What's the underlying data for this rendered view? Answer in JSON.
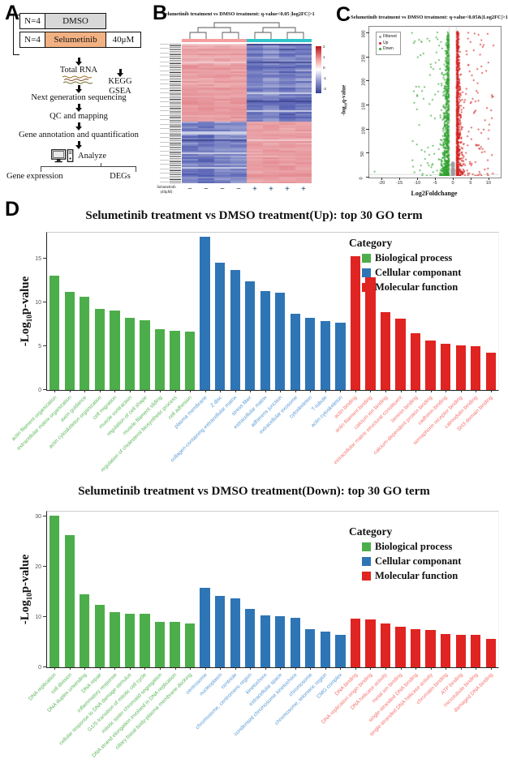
{
  "panels": {
    "a": {
      "label": "A",
      "groups": [
        {
          "n": "N=4",
          "name": "DMSO",
          "dose": ""
        },
        {
          "n": "N=4",
          "name": "Selumetinib",
          "dose": "40μM"
        }
      ],
      "steps": [
        "Total RNA",
        "Next generation sequencing",
        "QC and mapping",
        "Gene annotation and quantification"
      ],
      "analyze_label": "Analyze",
      "outputs": {
        "left": "Gene expression",
        "right": "DEGs"
      },
      "downstream": [
        "KEGG",
        "GSEA"
      ]
    },
    "b": {
      "label": "B",
      "title": "Selumetinib treatment vs DMSO treatment: q-value<0.05 |log2FC|>1",
      "row_label_lines": [
        "Selumetinib",
        "(40μM)"
      ],
      "col_signs": [
        "−",
        "−",
        "−",
        "−",
        "+",
        "+",
        "+",
        "+"
      ],
      "colorbar_ticks": [
        "2",
        "1",
        "0",
        "-1",
        "-2"
      ],
      "annotation_colors": [
        "#f49e9e",
        "#2fc5c9"
      ]
    },
    "c": {
      "label": "C"
    },
    "d": {
      "label": "D"
    }
  },
  "chart_data": [
    {
      "id": "go_up",
      "type": "bar",
      "title": "Selumetinib treatment vs DMSO treatment(Up): top 30  GO term",
      "ylabel_parts": {
        "prefix": "-Log",
        "sub": "10",
        "suffix": "p-value"
      },
      "yticks": [
        0,
        5,
        10,
        15
      ],
      "ylim": [
        0,
        18
      ],
      "legend": {
        "title": "Category",
        "entries": [
          {
            "label": "Biological process",
            "color": "#4cae4a"
          },
          {
            "label": "Cellular componant",
            "color": "#2e75b6"
          },
          {
            "label": "Molecular function",
            "color": "#e02421"
          }
        ]
      },
      "groups": [
        {
          "name": "Biological process",
          "bar_color": "#4cae4a",
          "label_color": "#5db75d",
          "terms": [
            "actin filament organization",
            "extracellular matrix organization",
            "axon guidance",
            "actin cytoskeleton organization",
            "cell migration",
            "muscle contraction",
            "regulation of cell shape",
            "muscle filament sliding",
            "regulation of cholesterol biosynthetic process",
            "cell adhesion"
          ],
          "values": [
            13.1,
            11.2,
            10.7,
            9.3,
            9.1,
            8.3,
            8.0,
            7.0,
            6.8,
            6.7
          ]
        },
        {
          "name": "Cellular componant",
          "bar_color": "#2e75b6",
          "label_color": "#5b9bd5",
          "terms": [
            "plasma membrane",
            "Z disc",
            "collagen-containing extracellular matrix",
            "stress fiber",
            "extracellular matrix",
            "adherens junction",
            "extracellular exosome",
            "cytoskeleton",
            "T-tubule",
            "actin cytoskeleton"
          ],
          "values": [
            17.5,
            14.6,
            13.7,
            12.4,
            11.3,
            11.1,
            8.7,
            8.3,
            7.9,
            7.7
          ]
        },
        {
          "name": "Molecular function",
          "bar_color": "#e02421",
          "label_color": "#f4756f",
          "terms": [
            "actin binding",
            "actin filament binding",
            "calcium ion binding",
            "extracellular matrix structural constituent",
            "laminin binding",
            "calcium-dependent protein binding",
            "cadherin binding",
            "semaphorin receptor binding",
            "calmodulin binding",
            "SH3 domain binding"
          ],
          "values": [
            15.3,
            12.9,
            8.9,
            8.2,
            6.5,
            5.7,
            5.3,
            5.1,
            5.0,
            4.3
          ]
        }
      ]
    },
    {
      "id": "go_down",
      "type": "bar",
      "title": "Selumetinib treatment vs DMSO treatment(Down): top 30  GO term",
      "ylabel_parts": {
        "prefix": "-Log",
        "sub": "10",
        "suffix": "p-value"
      },
      "yticks": [
        0,
        10,
        20,
        30
      ],
      "ylim": [
        0,
        31
      ],
      "legend": {
        "title": "Category",
        "entries": [
          {
            "label": "Biological process",
            "color": "#4cae4a"
          },
          {
            "label": "Cellular componant",
            "color": "#2e75b6"
          },
          {
            "label": "Molecular function",
            "color": "#e02421"
          }
        ]
      },
      "groups": [
        {
          "name": "Biological process",
          "bar_color": "#4cae4a",
          "label_color": "#5db75d",
          "terms": [
            "DNA replication",
            "cell division",
            "DNA duplex unwinding",
            "DNA repair",
            "inflammatory response",
            "cellular response to DNA damage stimulus",
            "G1/S transition of mitotic cell cycle",
            "mitotic sister chromatid segregation",
            "DNA strand elongation involved in DNA replication",
            "ciliary basal body-plasma membrane docking"
          ],
          "values": [
            30.2,
            26.4,
            14.6,
            12.5,
            11.0,
            10.7,
            10.7,
            9.1,
            9.0,
            8.8
          ]
        },
        {
          "name": "Cellular componant",
          "bar_color": "#2e75b6",
          "label_color": "#5b9bd5",
          "terms": [
            "centrosome",
            "nucleoplasm",
            "centriole",
            "chromosome, centromeric region",
            "kinetochore",
            "extracellular space",
            "condensed chromosome kinetochore",
            "chromosome",
            "chromosome, telomeric region",
            "CMG complex"
          ],
          "values": [
            15.8,
            14.2,
            13.7,
            11.6,
            10.3,
            10.2,
            9.8,
            7.6,
            7.1,
            6.5
          ]
        },
        {
          "name": "Molecular function",
          "bar_color": "#e02421",
          "label_color": "#f4756f",
          "terms": [
            "DNA binding",
            "DNA replication origin binding",
            "DNA helicase activity",
            "metal ion binding",
            "single-stranded DNA binding",
            "single-stranded DNA helicase activity",
            "chromatin binding",
            "ATP binding",
            "microtubule binding",
            "damaged DNA binding"
          ],
          "values": [
            9.7,
            9.6,
            8.7,
            8.0,
            7.6,
            7.4,
            6.7,
            6.5,
            6.4,
            5.7
          ]
        }
      ]
    },
    {
      "id": "volcano",
      "type": "scatter",
      "title": "Selumetinib treatment vs DMSO treatment: q-value<0.05&|Log2FC|>1",
      "xlabel": "Log2Foldchange",
      "ylabel_parts": {
        "prefix": "-log",
        "sub": "10",
        "suffix": "q-value"
      },
      "xticks": [
        -20,
        -15,
        -10,
        -5,
        0,
        5,
        10
      ],
      "yticks": [
        0,
        50,
        100,
        150,
        200,
        250,
        300
      ],
      "xlim": [
        -23.5,
        13
      ],
      "ylim": [
        0,
        310
      ],
      "legend": [
        {
          "label": "Filtered",
          "color": "#9e9e9e"
        },
        {
          "label": "Up",
          "color": "#d42020"
        },
        {
          "label": "Down",
          "color": "#2fa12f"
        }
      ],
      "thresholds": {
        "x": [
          -1,
          1
        ],
        "y": 3
      }
    },
    {
      "id": "heatmap",
      "type": "heatmap",
      "title": "Selumetinib treatment vs DMSO treatment: q-value<0.05 |log2FC|>1",
      "n_columns": 8,
      "column_groups": [
        "DMSO x4 (−)",
        "Selumetinib x4 (+)"
      ],
      "pattern": "upper gene cluster: high (red) in DMSO / low (blue) in Selumetinib; lower gene cluster inverted",
      "scale_ticks": [
        "2",
        "1",
        "0",
        "-1",
        "-2"
      ],
      "colors": {
        "high": "#f2a0a8",
        "low": "#7b80b8",
        "ann_left": "#f49e9e",
        "ann_right": "#2fc5c9"
      }
    }
  ]
}
